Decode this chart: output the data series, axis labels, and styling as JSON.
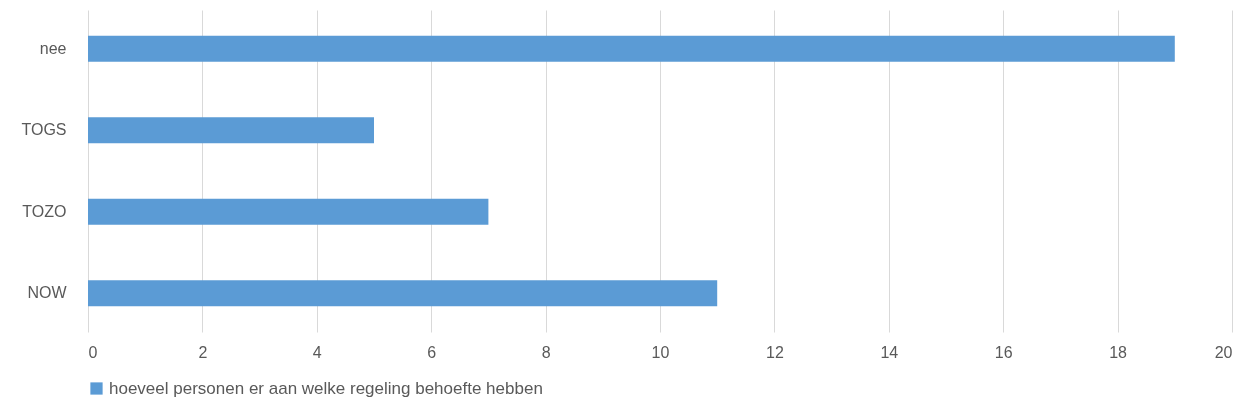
{
  "chart_data": {
    "type": "bar",
    "orientation": "horizontal",
    "categories": [
      "nee",
      "TOGS",
      "TOZO",
      "NOW"
    ],
    "series": [
      {
        "name": "hoeveel personen er aan welke regeling behoefte hebben",
        "color": "#5b9bd5",
        "values": [
          19,
          5,
          7,
          11
        ]
      }
    ],
    "xlim": [
      0,
      20
    ],
    "xticks": [
      0,
      2,
      4,
      6,
      8,
      10,
      12,
      14,
      16,
      18,
      20
    ],
    "grid": "x",
    "legend": "bottom"
  }
}
